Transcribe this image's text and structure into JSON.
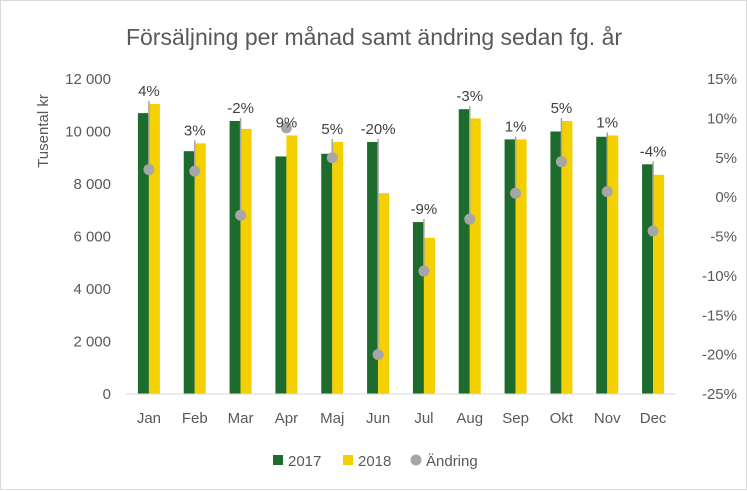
{
  "chart_data": {
    "type": "bar",
    "title": "Försäljning per månad samt ändring sedan fg. år",
    "ylabel": "Tusental kr",
    "categories": [
      "Jan",
      "Feb",
      "Mar",
      "Apr",
      "Maj",
      "Jun",
      "Jul",
      "Aug",
      "Sep",
      "Okt",
      "Nov",
      "Dec"
    ],
    "series": [
      {
        "name": "2017",
        "type": "bar",
        "axis": "left",
        "color": "#1e6b2e",
        "values": [
          10700,
          9250,
          10400,
          9050,
          9150,
          9600,
          6550,
          10850,
          9700,
          10000,
          9800,
          8750
        ]
      },
      {
        "name": "2018",
        "type": "bar",
        "axis": "left",
        "color": "#f5d000",
        "values": [
          11050,
          9550,
          10100,
          9850,
          9600,
          7650,
          5950,
          10500,
          9700,
          10400,
          9850,
          8350
        ]
      },
      {
        "name": "Ändring",
        "type": "scatter",
        "axis": "right",
        "color": "#a6a6a6",
        "values": [
          3.5,
          3.3,
          -2.3,
          8.8,
          5.0,
          -20.0,
          -9.4,
          -2.8,
          0.5,
          4.5,
          0.7,
          -4.3
        ],
        "labels": [
          "4%",
          "3%",
          "-2%",
          "9%",
          "5%",
          "-20%",
          "-9%",
          "-3%",
          "1%",
          "5%",
          "1%",
          "-4%"
        ]
      }
    ],
    "yaxis_left": {
      "min": 0,
      "max": 12000,
      "ticks": [
        0,
        2000,
        4000,
        6000,
        8000,
        10000,
        12000
      ],
      "tick_labels": [
        "0",
        "2 000",
        "4 000",
        "6 000",
        "8 000",
        "10 000",
        "12 000"
      ]
    },
    "yaxis_right": {
      "min": -25,
      "max": 15,
      "ticks": [
        -25,
        -20,
        -15,
        -10,
        -5,
        0,
        5,
        10,
        15
      ],
      "tick_labels": [
        "-25%",
        "-20%",
        "-15%",
        "-10%",
        "-5%",
        "0%",
        "5%",
        "10%",
        "15%"
      ]
    },
    "grid": false,
    "legend": {
      "position": "bottom"
    }
  }
}
